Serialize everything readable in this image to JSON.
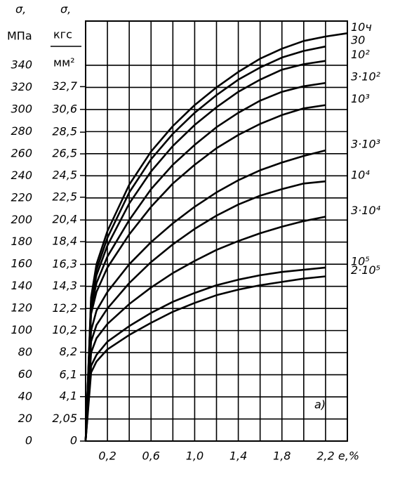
{
  "chart_data": {
    "type": "line",
    "y_symbol": "σ,",
    "ylabel": "МПа",
    "y2_symbol": "σ,",
    "y2label_numerator": "кгс",
    "y2label_denominator": "мм²",
    "xlabel": "e,%",
    "annotation": "a)",
    "x": [
      0,
      0.05,
      0.1,
      0.2,
      0.4,
      0.6,
      0.8,
      1.0,
      1.2,
      1.4,
      1.6,
      1.8,
      2.0,
      2.2,
      2.4
    ],
    "series": [
      {
        "name": "10ч",
        "color": "#000000",
        "values": [
          0,
          130,
          160,
          190,
          232,
          262,
          285,
          304,
          320,
          334,
          346,
          355,
          362,
          366,
          369
        ]
      },
      {
        "name": "30",
        "color": "#000000",
        "values": [
          0,
          128,
          155,
          184,
          225,
          255,
          278,
          297,
          313,
          327,
          338,
          347,
          353,
          357,
          null
        ]
      },
      {
        "name": "10²",
        "color": "#000000",
        "values": [
          0,
          125,
          150,
          177,
          215,
          244,
          267,
          286,
          302,
          316,
          327,
          336,
          341,
          344,
          null
        ]
      },
      {
        "name": "3·10²",
        "color": "#000000",
        "values": [
          0,
          120,
          143,
          167,
          200,
          228,
          250,
          268,
          284,
          297,
          308,
          316,
          321,
          324,
          null
        ]
      },
      {
        "name": "10³",
        "color": "#000000",
        "values": [
          0,
          115,
          135,
          157,
          187,
          212,
          233,
          250,
          265,
          277,
          287,
          295,
          301,
          304,
          null
        ]
      },
      {
        "name": "3·10³",
        "color": "#000000",
        "values": [
          0,
          100,
          118,
          135,
          160,
          180,
          197,
          212,
          225,
          236,
          245,
          252,
          258,
          263,
          null
        ]
      },
      {
        "name": "10⁴",
        "color": "#000000",
        "values": [
          0,
          90,
          105,
          120,
          143,
          162,
          178,
          192,
          204,
          214,
          222,
          228,
          233,
          235,
          null
        ]
      },
      {
        "name": "3·10⁴",
        "color": "#000000",
        "values": [
          0,
          80,
          93,
          106,
          124,
          139,
          152,
          163,
          173,
          181,
          188,
          194,
          199,
          203,
          null
        ]
      },
      {
        "name": "10⁵",
        "color": "#000000",
        "values": [
          0,
          68,
          78,
          90,
          104,
          116,
          126,
          134,
          141,
          146,
          150,
          153,
          155,
          157,
          null
        ]
      },
      {
        "name": "2·10⁵",
        "color": "#000000",
        "values": [
          0,
          62,
          72,
          83,
          96,
          107,
          117,
          125,
          132,
          137,
          141,
          144,
          147,
          149,
          null
        ]
      }
    ],
    "xlim": [
      0,
      2.4
    ],
    "xticks": [
      {
        "value": 0.2,
        "label": "0,2"
      },
      {
        "value": 0.4,
        "label": null
      },
      {
        "value": 0.6,
        "label": "0,6"
      },
      {
        "value": 0.8,
        "label": null
      },
      {
        "value": 1.0,
        "label": "1,0"
      },
      {
        "value": 1.2,
        "label": null
      },
      {
        "value": 1.4,
        "label": "1,4"
      },
      {
        "value": 1.6,
        "label": null
      },
      {
        "value": 1.8,
        "label": "1,8"
      },
      {
        "value": 2.0,
        "label": null
      },
      {
        "value": 2.2,
        "label": "2,2"
      }
    ],
    "ylim": [
      0,
      380
    ],
    "yticks": [
      0,
      20,
      40,
      60,
      80,
      100,
      120,
      140,
      160,
      180,
      200,
      220,
      240,
      260,
      280,
      300,
      320,
      340
    ],
    "y2lim": [
      0,
      38.75
    ],
    "y2ticks": [
      0,
      {
        "value": 2.05,
        "label": "2,05"
      },
      {
        "value": 4.1,
        "label": "4,1"
      },
      {
        "value": 6.1,
        "label": "6,1"
      },
      {
        "value": 8.2,
        "label": "8,2"
      },
      {
        "value": 10.2,
        "label": "10,2"
      },
      {
        "value": 12.2,
        "label": "12,2"
      },
      {
        "value": 14.3,
        "label": "14,3"
      },
      {
        "value": 16.3,
        "label": "16,3"
      },
      {
        "value": 18.4,
        "label": "18,4"
      },
      {
        "value": 20.4,
        "label": "20,4"
      },
      {
        "value": 22.5,
        "label": "22,5"
      },
      {
        "value": 24.5,
        "label": "24,5"
      },
      {
        "value": 26.5,
        "label": "26,5"
      },
      {
        "value": 28.5,
        "label": "28,5"
      },
      {
        "value": 30.6,
        "label": "30,6"
      },
      {
        "value": 32.7,
        "label": "32,7"
      }
    ],
    "grid": true
  }
}
